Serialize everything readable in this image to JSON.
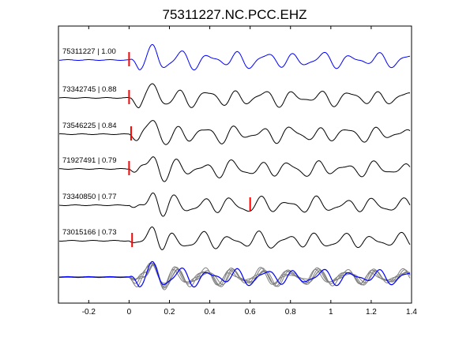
{
  "chart_data": {
    "type": "line",
    "title": "75311227.NC.PCC.EHZ",
    "xlabel": "",
    "ylabel": "",
    "xlim": [
      -0.35,
      1.4
    ],
    "xticks": [
      -0.2,
      0,
      0.2,
      0.4,
      0.6,
      0.8,
      1,
      1.2,
      1.4
    ],
    "xtick_labels": [
      "-0.2",
      "0",
      "0.2",
      "0.4",
      "0.6",
      "0.8",
      "1",
      "1.2",
      "1.4"
    ],
    "grid": false,
    "legend": "none",
    "traces": [
      {
        "id": "75311227",
        "label": "75311227 | 1.00",
        "cc": 1.0,
        "pick_time": 0.0,
        "color": "#0000ff"
      },
      {
        "id": "73342745",
        "label": "73342745 | 0.88",
        "cc": 0.88,
        "pick_time": 0.0,
        "color": "#000000"
      },
      {
        "id": "73546225",
        "label": "73546225 | 0.84",
        "cc": 0.84,
        "pick_time": 0.01,
        "color": "#000000"
      },
      {
        "id": "71927491",
        "label": "71927491 | 0.79",
        "cc": 0.79,
        "pick_time": 0.0,
        "color": "#000000"
      },
      {
        "id": "73340850",
        "label": "73340850 | 0.77",
        "cc": 0.77,
        "pick_time": 0.6,
        "color": "#000000"
      },
      {
        "id": "73015166",
        "label": "73015166 | 0.73",
        "cc": 0.73,
        "pick_time": 0.015,
        "color": "#000000"
      }
    ],
    "stack": {
      "description_colors": [
        "#0000ff",
        "#808080"
      ]
    },
    "colors": {
      "reference": "#0000ff",
      "trace": "#000000",
      "overlay": "#808080",
      "pick": "#ff0000",
      "axes": "#000000"
    }
  }
}
